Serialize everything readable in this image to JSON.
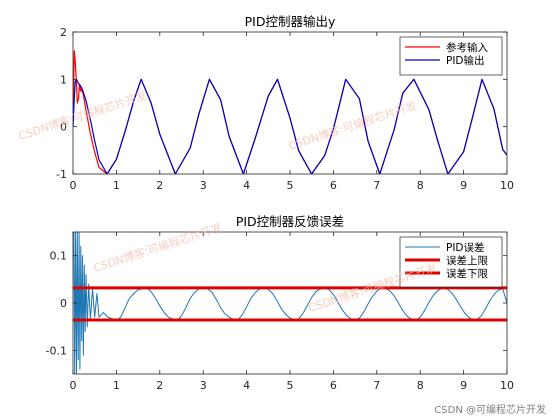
{
  "chart_data": [
    {
      "type": "line",
      "title": "PID控制器输出y",
      "xlabel": "",
      "ylabel": "",
      "xlim": [
        0,
        10
      ],
      "ylim": [
        -1,
        2
      ],
      "xticks": [
        "0",
        "1",
        "2",
        "3",
        "4",
        "5",
        "6",
        "7",
        "8",
        "9",
        "10"
      ],
      "yticks": [
        "-1",
        "0",
        "1",
        "2"
      ],
      "legend_position": "top-right",
      "grid": false,
      "series": [
        {
          "name": "参考输入",
          "color": "#ff0000",
          "x": [
            0,
            0.01,
            0.02,
            0.03,
            0.05,
            0.08,
            0.1,
            0.13,
            0.15,
            0.18,
            0.2,
            0.23,
            0.25,
            0.3,
            0.4,
            0.5,
            0.6,
            0.785,
            1.0,
            1.2,
            1.4,
            1.571,
            1.8,
            2.0,
            2.356,
            2.7,
            2.9,
            3.142,
            3.4,
            3.6,
            3.927,
            4.2,
            4.5,
            4.712,
            5.0,
            5.2,
            5.498,
            5.8,
            6.0,
            6.283,
            6.6,
            6.8,
            7.069,
            7.4,
            7.6,
            7.854,
            8.2,
            8.4,
            8.639,
            9.0,
            9.2,
            9.425,
            9.7,
            9.9,
            10.0
          ],
          "y": [
            0,
            0.6,
            1.1,
            1.6,
            1.4,
            0.9,
            0.5,
            0.6,
            0.9,
            0.75,
            0.8,
            0.7,
            0.62,
            0.35,
            -0.15,
            -0.54,
            -0.86,
            -1.0,
            -0.69,
            -0.1,
            0.55,
            1.0,
            0.5,
            -0.16,
            -1.0,
            -0.45,
            0.27,
            1.0,
            0.57,
            -0.21,
            -1.0,
            -0.24,
            0.65,
            1.0,
            0.18,
            -0.51,
            -1.0,
            -0.61,
            -0.05,
            1.0,
            0.59,
            -0.31,
            -1.0,
            -0.06,
            0.71,
            1.0,
            0.36,
            -0.29,
            -1.0,
            -0.53,
            0.18,
            1.0,
            0.37,
            -0.48,
            -0.6
          ]
        },
        {
          "name": "PID输出",
          "color": "#0000cc",
          "x": [
            0,
            0.03,
            0.05,
            0.08,
            0.12,
            0.16,
            0.2,
            0.25,
            0.3,
            0.4,
            0.5,
            0.6,
            0.785,
            1.0,
            1.2,
            1.4,
            1.571,
            1.8,
            2.0,
            2.356,
            2.7,
            2.9,
            3.142,
            3.4,
            3.6,
            3.927,
            4.2,
            4.5,
            4.712,
            5.0,
            5.2,
            5.498,
            5.8,
            6.0,
            6.283,
            6.6,
            6.8,
            7.069,
            7.4,
            7.6,
            7.854,
            8.2,
            8.4,
            8.639,
            9.0,
            9.2,
            9.425,
            9.7,
            9.9,
            10.0
          ],
          "y": [
            0,
            0.6,
            0.95,
            1.0,
            0.92,
            0.88,
            0.82,
            0.7,
            0.55,
            0.15,
            -0.3,
            -0.7,
            -1.0,
            -0.69,
            -0.1,
            0.55,
            1.0,
            0.5,
            -0.16,
            -1.0,
            -0.45,
            0.27,
            1.0,
            0.57,
            -0.21,
            -1.0,
            -0.24,
            0.65,
            1.0,
            0.18,
            -0.51,
            -1.0,
            -0.61,
            -0.05,
            1.0,
            0.59,
            -0.31,
            -1.0,
            -0.06,
            0.71,
            1.0,
            0.36,
            -0.29,
            -1.0,
            -0.53,
            0.18,
            1.0,
            0.37,
            -0.48,
            -0.6
          ]
        }
      ]
    },
    {
      "type": "line",
      "title": "PID控制器反馈误差",
      "xlabel": "",
      "ylabel": "",
      "xlim": [
        0,
        10
      ],
      "ylim": [
        -0.15,
        0.15
      ],
      "xticks": [
        "0",
        "1",
        "2",
        "3",
        "4",
        "5",
        "6",
        "7",
        "8",
        "9",
        "10"
      ],
      "yticks": [
        "-0.1",
        "0",
        "0.1"
      ],
      "legend_position": "top-right",
      "grid": false,
      "series": [
        {
          "name": "PID误差",
          "color": "#1f77b4",
          "x": [
            0,
            0.02,
            0.04,
            0.06,
            0.08,
            0.1,
            0.12,
            0.14,
            0.16,
            0.18,
            0.2,
            0.22,
            0.24,
            0.26,
            0.28,
            0.3,
            0.33,
            0.36,
            0.4,
            0.45,
            0.5,
            0.55,
            0.6,
            0.7,
            0.8,
            0.9,
            1.0,
            1.1,
            1.2,
            1.3,
            1.4,
            1.5,
            1.6,
            1.7,
            1.8,
            1.9,
            2.0,
            2.1,
            2.2,
            2.3,
            2.4,
            2.5,
            2.6,
            2.7,
            2.8,
            2.9,
            3.0,
            3.1,
            3.2,
            3.3,
            3.4,
            3.5,
            3.6,
            3.7,
            3.8,
            3.9,
            4.0,
            4.1,
            4.2,
            4.3,
            4.4,
            4.5,
            4.6,
            4.7,
            4.8,
            4.9,
            5.0,
            5.1,
            5.2,
            5.3,
            5.4,
            5.5,
            5.6,
            5.7,
            5.8,
            5.9,
            6.0,
            6.1,
            6.2,
            6.3,
            6.4,
            6.5,
            6.6,
            6.7,
            6.8,
            6.9,
            7.0,
            7.1,
            7.2,
            7.3,
            7.4,
            7.5,
            7.6,
            7.7,
            7.8,
            7.9,
            8.0,
            8.1,
            8.2,
            8.3,
            8.4,
            8.5,
            8.6,
            8.7,
            8.8,
            8.9,
            9.0,
            9.1,
            9.2,
            9.3,
            9.4,
            9.5,
            9.6,
            9.7,
            9.8,
            9.9,
            10.0
          ],
          "y": [
            0.15,
            0.15,
            -0.15,
            0.15,
            -0.15,
            0.15,
            -0.12,
            0.15,
            -0.14,
            0.12,
            -0.08,
            0.1,
            -0.11,
            0.08,
            -0.06,
            0.06,
            -0.05,
            0.04,
            -0.035,
            0.03,
            -0.03,
            0.02,
            -0.03,
            -0.02,
            -0.03,
            -0.033,
            -0.037,
            -0.03,
            -0.01,
            0.01,
            0.02,
            0.028,
            0.03,
            0.032,
            0.024,
            0.01,
            -0.006,
            -0.02,
            -0.03,
            -0.034,
            -0.037,
            -0.027,
            -0.01,
            0.01,
            0.022,
            0.03,
            0.032,
            0.03,
            0.023,
            0.008,
            -0.01,
            -0.023,
            -0.03,
            -0.035,
            -0.036,
            -0.025,
            -0.008,
            0.01,
            0.022,
            0.03,
            0.032,
            0.029,
            0.02,
            0.005,
            -0.012,
            -0.024,
            -0.032,
            -0.036,
            -0.034,
            -0.022,
            -0.005,
            0.012,
            0.024,
            0.03,
            0.032,
            0.028,
            0.018,
            0.003,
            -0.014,
            -0.026,
            -0.033,
            -0.036,
            -0.032,
            -0.019,
            -0.002,
            0.014,
            0.025,
            0.031,
            0.031,
            0.026,
            0.015,
            0.0,
            -0.016,
            -0.028,
            -0.034,
            -0.036,
            -0.03,
            -0.016,
            0.001,
            0.016,
            0.026,
            0.031,
            0.031,
            0.024,
            0.012,
            -0.003,
            -0.018,
            -0.029,
            -0.035,
            -0.035,
            -0.028,
            -0.013,
            0.004,
            0.018,
            0.027,
            0.03,
            0.0
          ]
        },
        {
          "name": "误差上限",
          "color": "#dd0000",
          "x": [
            0,
            10
          ],
          "y": [
            0.032,
            0.032
          ]
        },
        {
          "name": "误差下限",
          "color": "#dd0000",
          "x": [
            0,
            10
          ],
          "y": [
            -0.036,
            -0.036
          ]
        }
      ]
    }
  ],
  "watermarks": [
    "CSDN博客:可编程芯片开发",
    "CSDN博客:可编程芯片开发",
    "CSDN博客:可编程芯片开发",
    "CSDN博客:可编程芯片开发"
  ],
  "credit": "CSDN @可编程芯片开发"
}
